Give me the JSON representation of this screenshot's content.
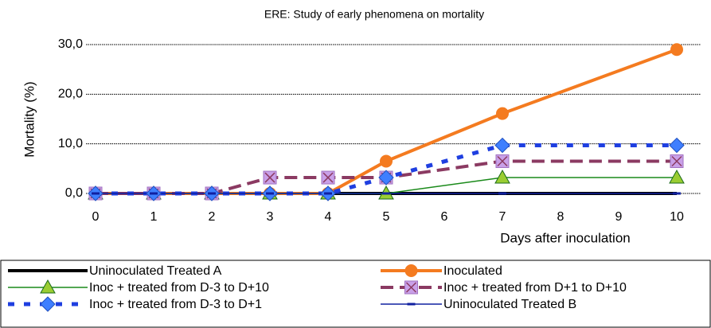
{
  "chart_data": {
    "type": "line",
    "title": "ERE: Study of early phenomena on mortality",
    "x_label": "Days after inoculation",
    "y_label": "Mortality (%)",
    "x": [
      0,
      1,
      2,
      3,
      4,
      5,
      7,
      10
    ],
    "xlim": [
      0,
      10
    ],
    "xticks": [
      0,
      1,
      2,
      3,
      4,
      5,
      6,
      7,
      8,
      9,
      10
    ],
    "ylim": [
      0,
      30
    ],
    "yticks": [
      {
        "value": 0,
        "label": "0,0"
      },
      {
        "value": 10,
        "label": "10,0"
      },
      {
        "value": 20,
        "label": "20,0"
      },
      {
        "value": 30,
        "label": "30,0"
      }
    ],
    "grid": true,
    "series": [
      {
        "name": "Uninoculated Treated A",
        "color": "#000000",
        "values": [
          0,
          0,
          0,
          0,
          0,
          0,
          0,
          0
        ]
      },
      {
        "name": "Inoculated",
        "color": "#f47b20",
        "values": [
          0,
          0,
          0,
          0,
          0,
          6.5,
          16.1,
          29.0
        ]
      },
      {
        "name": "Inoc + treated from D-3 to D+10",
        "color": "#1a8a1a",
        "values": [
          0,
          0,
          0,
          0,
          0,
          0,
          3.2,
          3.2
        ]
      },
      {
        "name": "Inoc + treated from D+1 to D+10",
        "color": "#8b3a62",
        "values": [
          0,
          0,
          0,
          3.2,
          3.2,
          3.2,
          6.5,
          6.5
        ]
      },
      {
        "name": "Inoc + treated from D-3 to D+1",
        "color": "#1f3fe0",
        "values": [
          0,
          0,
          0,
          0,
          0,
          3.2,
          9.7,
          9.7
        ]
      },
      {
        "name": "Uninoculated Treated B",
        "color": "#1020a0",
        "values": [
          0,
          0,
          0,
          0,
          0,
          0,
          0,
          0
        ]
      }
    ]
  }
}
